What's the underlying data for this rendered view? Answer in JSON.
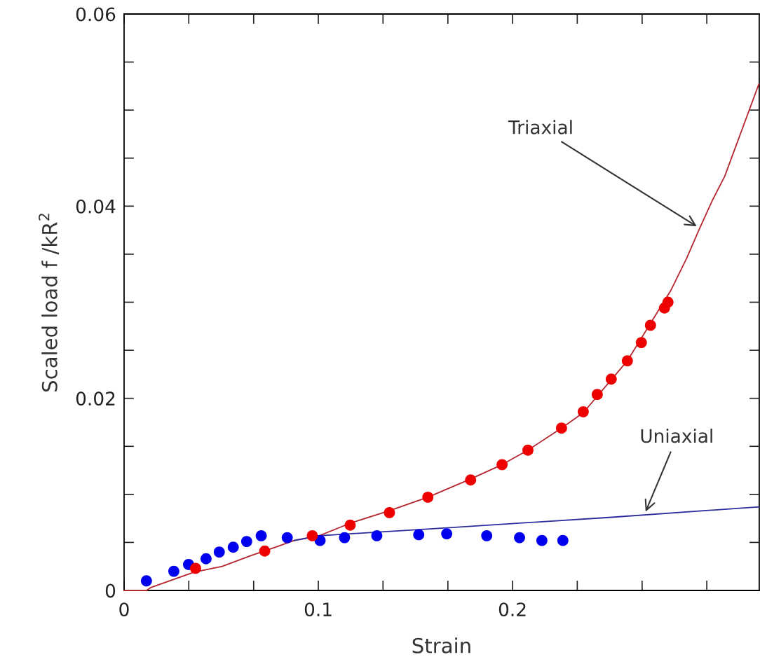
{
  "chart_data": {
    "type": "scatter",
    "xlabel": "Strain",
    "ylabel": "Scaled load f /kR$^{2}$",
    "xlim": [
      0,
      0.327
    ],
    "ylim": [
      0,
      0.06
    ],
    "xticks": [
      0,
      {
        "value": 0.0333,
        "label": null
      },
      {
        "value": 0.0667,
        "label": null
      },
      0.1,
      {
        "value": 0.1333,
        "label": null
      },
      {
        "value": 0.1667,
        "label": null
      },
      0.2,
      {
        "value": 0.2333,
        "label": null
      },
      {
        "value": 0.2667,
        "label": null
      },
      {
        "value": 0.3,
        "label": null
      }
    ],
    "yticks": [
      0,
      {
        "value": 0.005,
        "label": null
      },
      {
        "value": 0.01,
        "label": null
      },
      {
        "value": 0.015,
        "label": null
      },
      0.02,
      {
        "value": 0.025,
        "label": null
      },
      {
        "value": 0.03,
        "label": null
      },
      {
        "value": 0.035,
        "label": null
      },
      0.04,
      {
        "value": 0.045,
        "label": null
      },
      {
        "value": 0.05,
        "label": null
      },
      {
        "value": 0.055,
        "label": null
      },
      0.06
    ],
    "grid": false,
    "marker": "circle",
    "series": [
      {
        "type": "line",
        "color": "#b5262e",
        "marker": "none",
        "x": [
          0,
          0.0115,
          0.0137,
          0.036,
          0.0505,
          0.0649,
          0.0778,
          0.0876,
          0.1005,
          0.1164,
          0.1366,
          0.1564,
          0.1784,
          0.1946,
          0.2079,
          0.2252,
          0.2364,
          0.2591,
          0.271,
          0.2814,
          0.2897,
          0.2959,
          0.3031,
          0.3092,
          0.3268
        ],
        "values": [
          0,
          0,
          0.0003,
          0.0019,
          0.0025,
          0.0036,
          0.0045,
          0.0052,
          0.0057,
          0.007,
          0.0083,
          0.0097,
          0.0116,
          0.0131,
          0.0146,
          0.0169,
          0.0185,
          0.0239,
          0.0278,
          0.0312,
          0.0346,
          0.0375,
          0.0407,
          0.0431,
          0.0527
        ]
      },
      {
        "type": "line",
        "color": "#2b2b9e",
        "marker": "none",
        "x": [
          0.0876,
          0.1005,
          0.1164,
          0.1647,
          0.2497,
          0.3268
        ],
        "values": [
          0.0052,
          0.0057,
          0.0059,
          0.0065,
          0.0076,
          0.0087
        ]
      },
      {
        "color": "#0000ee",
        "x": [
          0.0115,
          0.0256,
          0.0332,
          0.0422,
          0.049,
          0.0562,
          0.0631,
          0.0706,
          0.084,
          0.1009,
          0.1135,
          0.1301,
          0.1517,
          0.1661,
          0.1867,
          0.2036,
          0.2151,
          0.2259
        ],
        "values": [
          0.001,
          0.002,
          0.0027,
          0.0033,
          0.004,
          0.0045,
          0.0051,
          0.0057,
          0.0055,
          0.0052,
          0.0055,
          0.0057,
          0.0058,
          0.0059,
          0.0057,
          0.0055,
          0.0052,
          0.0052
        ]
      },
      {
        "color": "#ee0000",
        "x": [
          0.0368,
          0.0724,
          0.0969,
          0.1164,
          0.1366,
          0.1564,
          0.1784,
          0.1946,
          0.2079,
          0.2252,
          0.2364,
          0.2436,
          0.2508,
          0.2591,
          0.2663,
          0.271,
          0.2782,
          0.28
        ],
        "values": [
          0.0023,
          0.0041,
          0.0057,
          0.0068,
          0.0081,
          0.0097,
          0.0115,
          0.0131,
          0.0146,
          0.0169,
          0.0186,
          0.0204,
          0.022,
          0.0239,
          0.0258,
          0.0276,
          0.0294,
          0.03
        ]
      }
    ],
    "annotations": [
      {
        "text": "Triaxial",
        "x": 0.2948,
        "y": 0.0379
      },
      {
        "text": "Uniaxial",
        "x": 0.2685,
        "y": 0.0082
      }
    ]
  }
}
